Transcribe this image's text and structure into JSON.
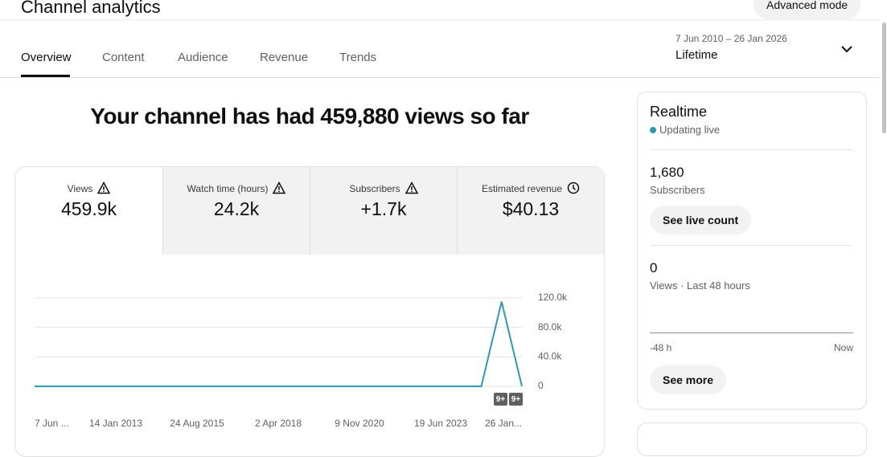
{
  "header": {
    "title": "Channel analytics",
    "advanced_mode": "Advanced mode"
  },
  "tabs": [
    "Overview",
    "Content",
    "Audience",
    "Revenue",
    "Trends"
  ],
  "active_tab": 0,
  "date_range": {
    "range": "7 Jun 2010 – 26 Jan 2026",
    "period": "Lifetime"
  },
  "headline": "Your channel has had 459,880 views so far",
  "metrics": [
    {
      "label": "Views",
      "value": "459.9k",
      "icon": "warning"
    },
    {
      "label": "Watch time (hours)",
      "value": "24.2k",
      "icon": "warning"
    },
    {
      "label": "Subscribers",
      "value": "+1.7k",
      "icon": "warning"
    },
    {
      "label": "Estimated revenue",
      "value": "$40.13",
      "icon": "clock"
    }
  ],
  "chart_data": {
    "type": "line",
    "categories": [
      "7 Jun ...",
      null,
      null,
      null,
      "14 Jan 2013",
      null,
      null,
      null,
      "24 Aug 2015",
      null,
      null,
      null,
      "2 Apr 2018",
      null,
      null,
      null,
      "9 Nov 2020",
      null,
      null,
      null,
      "19 Jun 2023",
      null,
      null,
      null,
      "26 Jan..."
    ],
    "series": [
      {
        "name": "Views",
        "color": "#2c9ab7",
        "values": [
          0,
          0,
          0,
          0,
          0,
          0,
          0,
          0,
          0,
          0,
          0,
          0,
          0,
          0,
          0,
          0,
          0,
          0,
          0,
          0,
          0,
          0,
          0,
          115000,
          0
        ]
      }
    ],
    "ylim": [
      0,
      120000
    ],
    "yticks": [
      {
        "value": 0,
        "label": "0"
      },
      {
        "value": 40000,
        "label": "40.0k"
      },
      {
        "value": 80000,
        "label": "80.0k"
      },
      {
        "value": 120000,
        "label": "120.0k"
      }
    ],
    "grid": true,
    "annotations": [
      "9+",
      "9+"
    ]
  },
  "realtime": {
    "title": "Realtime",
    "status": "Updating live",
    "subscribers": {
      "value": "1,680",
      "label": "Subscribers",
      "button": "See live count"
    },
    "views": {
      "value": "0",
      "label": "Views · Last 48 hours",
      "start": "-48 h",
      "end": "Now",
      "button": "See more"
    }
  }
}
